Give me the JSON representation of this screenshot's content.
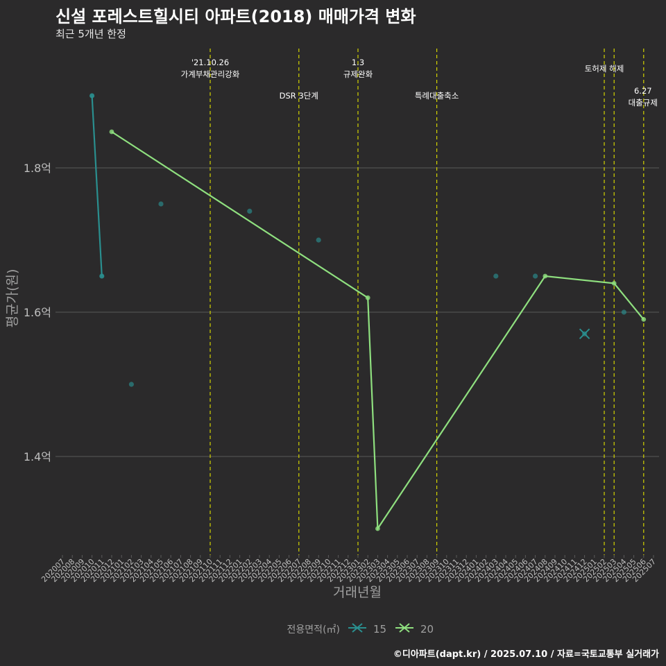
{
  "chart_data": {
    "type": "line",
    "title": "신설 포레스트힐시티 아파트(2018) 매매가격 변화",
    "subtitle": "최근 5개년 한정",
    "xlabel": "거래년월",
    "ylabel": "평균가(원)",
    "caption": "©디아파트(dapt.kr) / 2025.07.10 / 자료=국토교통부 실거래가",
    "legend_title": "전용면적(㎡)",
    "legend_position": "bottom",
    "grid": true,
    "ylim": [
      1.25,
      1.95
    ],
    "y_ticks": [
      1.4,
      1.6,
      1.8
    ],
    "y_tick_labels": [
      "1.4억",
      "1.6억",
      "1.8억"
    ],
    "x_categories": [
      "202007",
      "202008",
      "202009",
      "202010",
      "202011",
      "202012",
      "202101",
      "202102",
      "202103",
      "202104",
      "202105",
      "202106",
      "202107",
      "202108",
      "202109",
      "202110",
      "202111",
      "202112",
      "202201",
      "202202",
      "202203",
      "202204",
      "202205",
      "202206",
      "202207",
      "202208",
      "202209",
      "202210",
      "202211",
      "202212",
      "202301",
      "202302",
      "202303",
      "202304",
      "202305",
      "202306",
      "202307",
      "202308",
      "202309",
      "202310",
      "202311",
      "202312",
      "202401",
      "202402",
      "202403",
      "202404",
      "202405",
      "202406",
      "202407",
      "202408",
      "202409",
      "202410",
      "202411",
      "202412",
      "202501",
      "202502",
      "202503",
      "202504",
      "202505",
      "202506",
      "202507"
    ],
    "series": [
      {
        "name": "15",
        "color": "#2a8f8f",
        "line": [
          {
            "x": "202010",
            "y": 1.9
          },
          {
            "x": "202011",
            "y": 1.65
          }
        ],
        "points": [
          {
            "x": "202010",
            "y": 1.9
          },
          {
            "x": "202011",
            "y": 1.65
          },
          {
            "x": "202102",
            "y": 1.5
          },
          {
            "x": "202105",
            "y": 1.75
          },
          {
            "x": "202202",
            "y": 1.74
          },
          {
            "x": "202209",
            "y": 1.7
          },
          {
            "x": "202403",
            "y": 1.65
          },
          {
            "x": "202407",
            "y": 1.65
          },
          {
            "x": "202412",
            "y": 1.57
          },
          {
            "x": "202504",
            "y": 1.6
          }
        ],
        "cross_marker": {
          "x": "202412",
          "y": 1.57
        }
      },
      {
        "name": "20",
        "color": "#8fe07f",
        "line": [
          {
            "x": "202012",
            "y": 1.85
          },
          {
            "x": "202302",
            "y": 1.62
          },
          {
            "x": "202303",
            "y": 1.3
          },
          {
            "x": "202408",
            "y": 1.65
          },
          {
            "x": "202503",
            "y": 1.64
          },
          {
            "x": "202506",
            "y": 1.59
          }
        ]
      }
    ],
    "annotations": [
      {
        "x": "202110",
        "lines": [
          "'21.10.26",
          "가계부채관리강화"
        ],
        "level": "high"
      },
      {
        "x": "202207",
        "lines": [
          "DSR 3단계"
        ],
        "level": "low"
      },
      {
        "x": "202301",
        "lines": [
          "1.3",
          "규제완화"
        ],
        "level": "high"
      },
      {
        "x": "202309",
        "lines": [
          "특례대출축소"
        ],
        "level": "low"
      },
      {
        "x": "202502",
        "lines": [
          "토허제 해제"
        ],
        "level": "mid"
      },
      {
        "x": "202503",
        "lines": [],
        "level": "none"
      },
      {
        "x": "202506",
        "lines": [
          "6.27",
          "대출규제"
        ],
        "level": "right"
      }
    ],
    "colors": {
      "background": "#2b2a2b",
      "grid": "#5a5a5a",
      "vline": "#d4d400",
      "axis_text": "#bfbfbf",
      "title_text": "#a0a0a0"
    }
  }
}
